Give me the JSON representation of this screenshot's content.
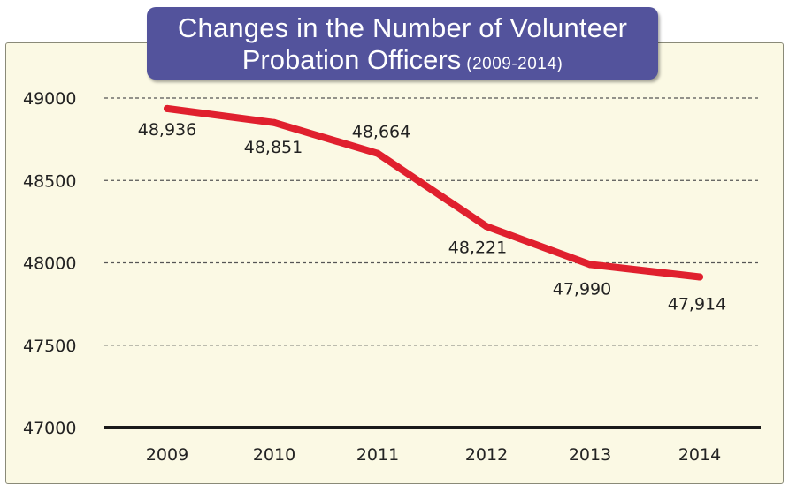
{
  "chart_data": {
    "type": "line",
    "title": "Changes in the Number of Volunteer",
    "title_line2": "Probation Officers",
    "subtitle": "(2009-2014)",
    "categories": [
      "2009",
      "2010",
      "2011",
      "2012",
      "2013",
      "2014"
    ],
    "series": [
      {
        "values": [
          48936,
          48851,
          48664,
          48221,
          47990,
          47914
        ],
        "labels": [
          "48,936",
          "48,851",
          "48,664",
          "48,221",
          "47,990",
          "47,914"
        ],
        "color": "#e0202e"
      }
    ],
    "ylim": [
      47000,
      49000
    ],
    "yticks": [
      "49000",
      "48500",
      "48000",
      "47500",
      "47000"
    ],
    "xlabel": "",
    "ylabel": "",
    "grid": "dashed horizontal",
    "colors": {
      "panel": "#fbf9e4",
      "banner": "#53539c",
      "line": "#e0202e",
      "baseline": "#1a1a1a",
      "grid": "#555555"
    }
  }
}
